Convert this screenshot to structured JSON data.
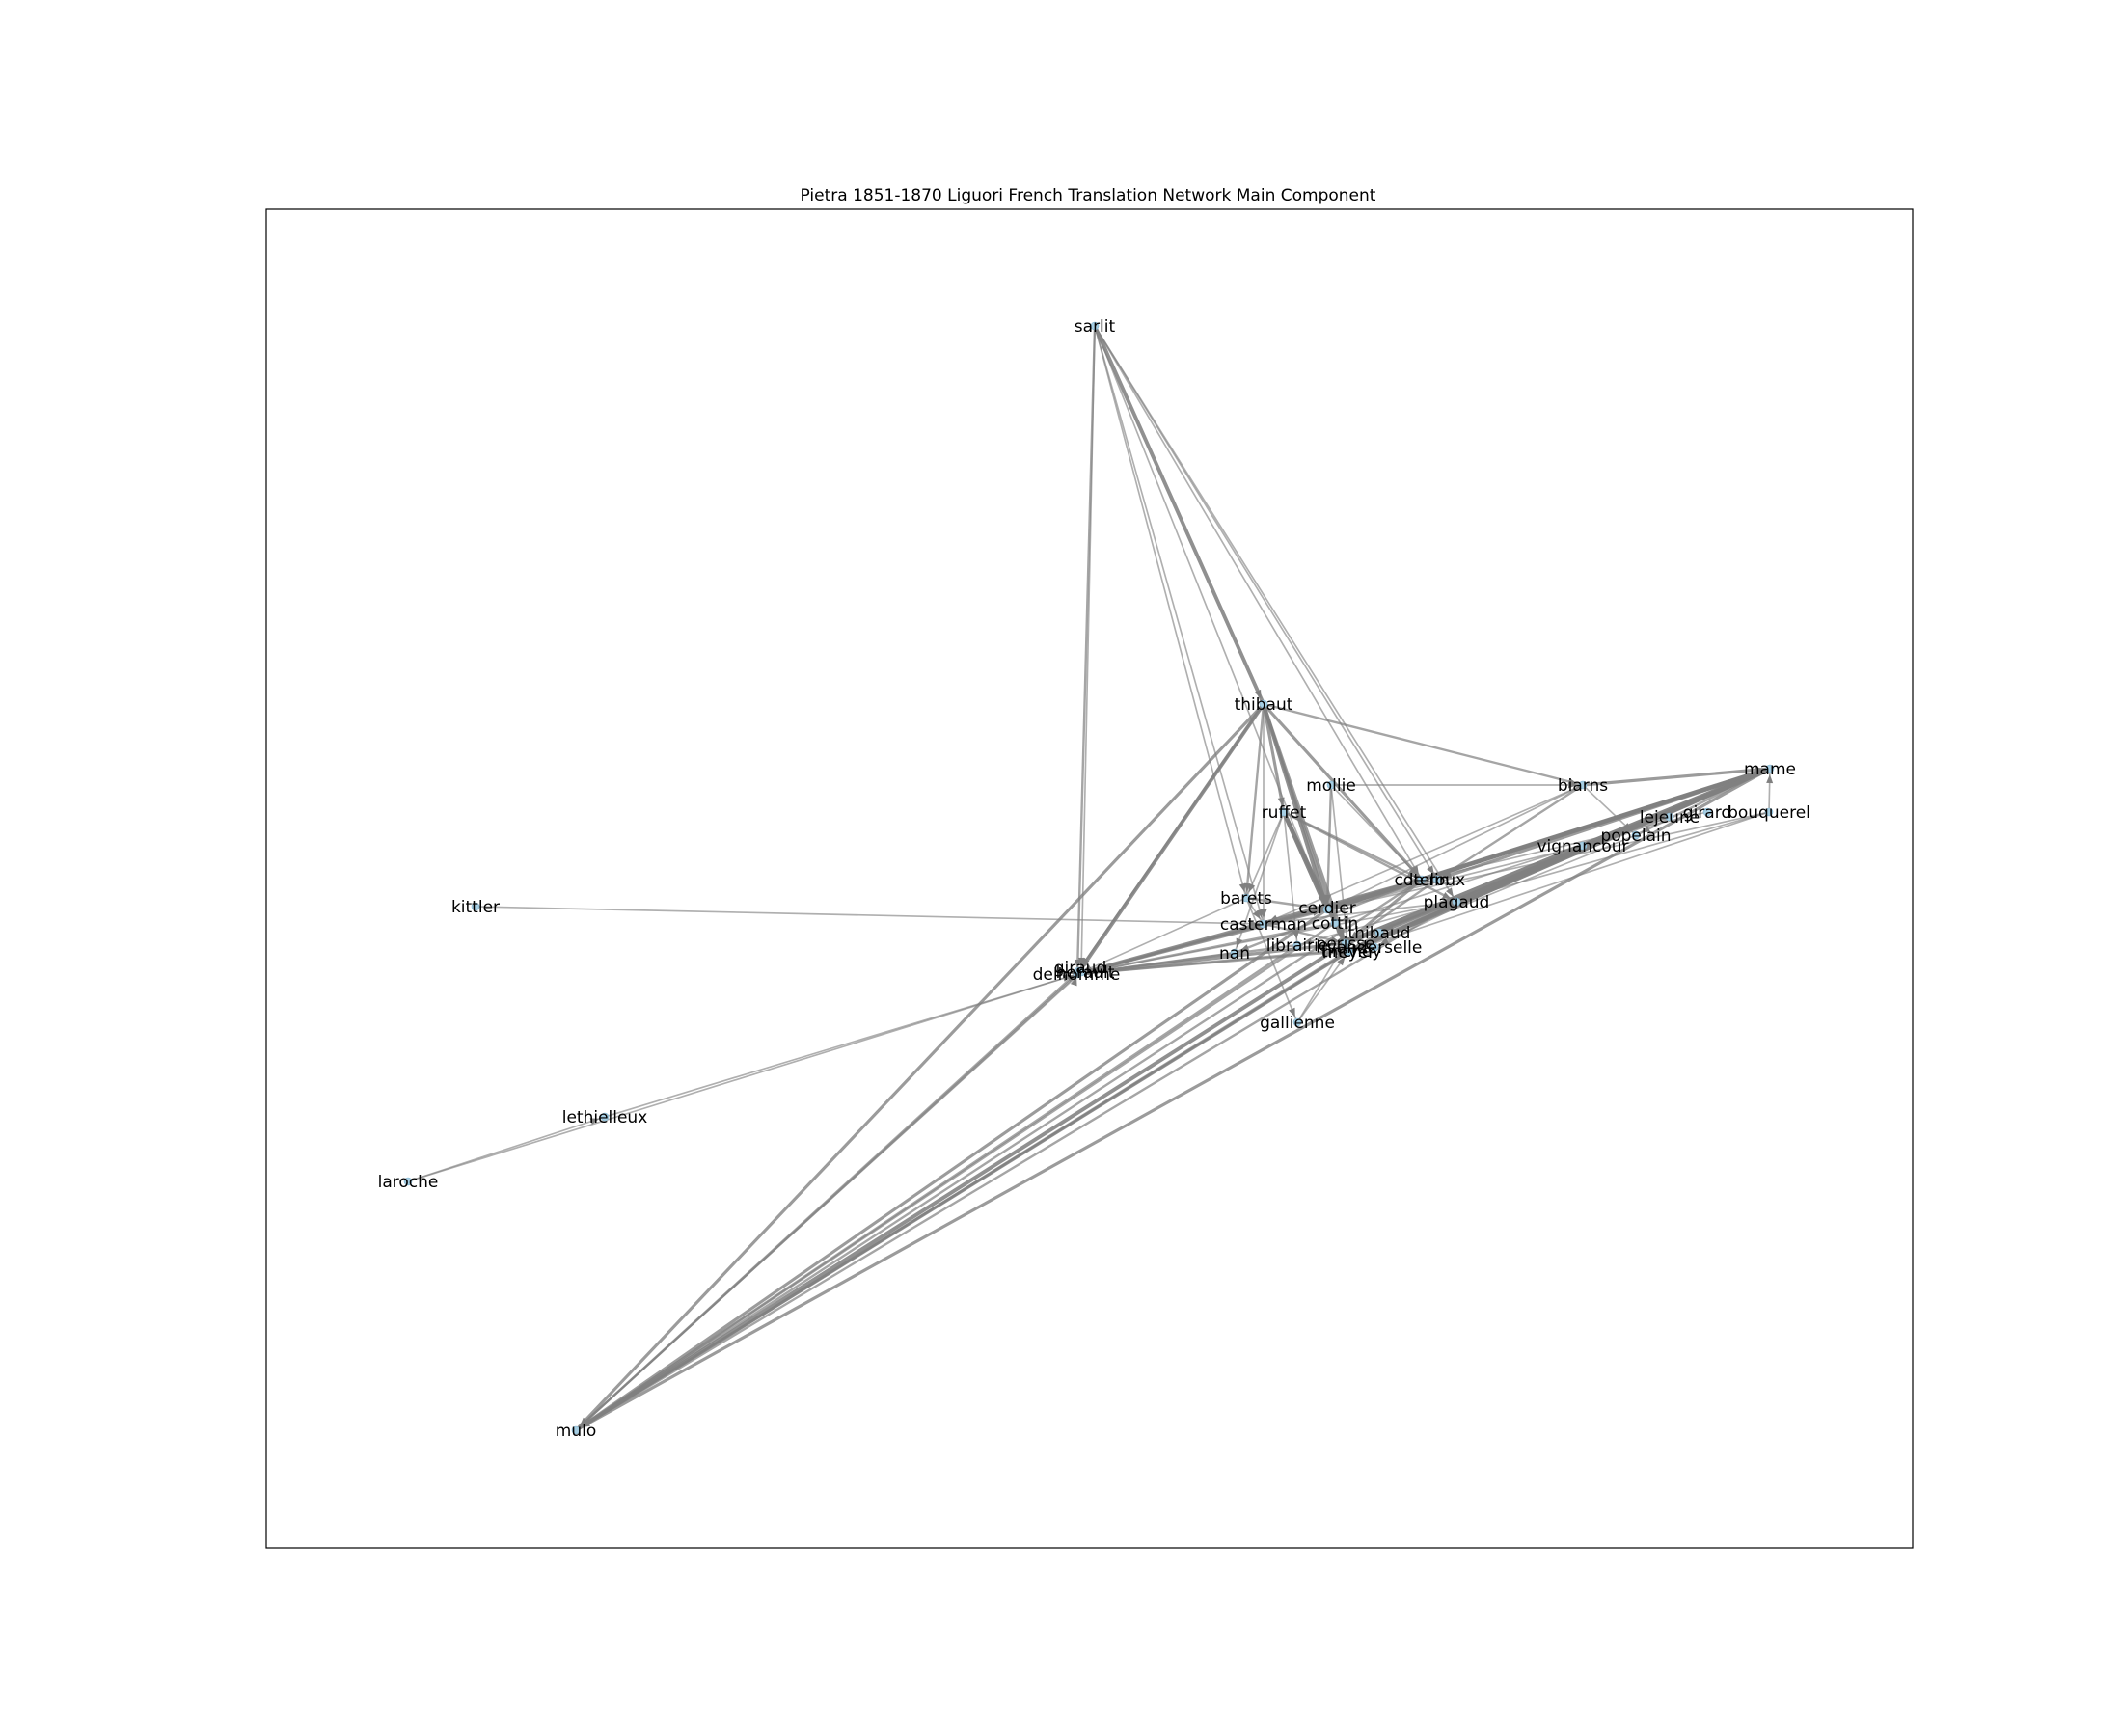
{
  "figure": {
    "title": "Pietra 1851-1870 Liguori French Translation Network Main Component"
  },
  "network": {
    "nodes": [
      {
        "id": "sarlit",
        "label": "sarlit"
      },
      {
        "id": "thibaut",
        "label": "thibaut"
      },
      {
        "id": "mollie",
        "label": "mollie"
      },
      {
        "id": "biarns",
        "label": "biarns"
      },
      {
        "id": "mame",
        "label": "mame"
      },
      {
        "id": "girard",
        "label": "girard"
      },
      {
        "id": "bouquerel",
        "label": "bouquerel"
      },
      {
        "id": "lejeune",
        "label": "lejeune"
      },
      {
        "id": "popelain",
        "label": "popelain"
      },
      {
        "id": "vignancour",
        "label": "vignancour"
      },
      {
        "id": "ruffet",
        "label": "ruffet"
      },
      {
        "id": "cotelin",
        "label": "cotelin"
      },
      {
        "id": "leroux",
        "label": "le roux"
      },
      {
        "id": "plagaud",
        "label": "plagaud"
      },
      {
        "id": "barets",
        "label": "barets"
      },
      {
        "id": "casterman",
        "label": "casterman"
      },
      {
        "id": "cerdier",
        "label": "cerdier"
      },
      {
        "id": "cottin",
        "label": "cottin"
      },
      {
        "id": "thibaud",
        "label": "thibaud"
      },
      {
        "id": "librairie",
        "label": "librairie"
      },
      {
        "id": "perisse",
        "label": "perisse"
      },
      {
        "id": "vanderselle",
        "label": "vanderselle"
      },
      {
        "id": "meyer",
        "label": "meyer"
      },
      {
        "id": "tinchey",
        "label": "tinchey"
      },
      {
        "id": "nan",
        "label": "nan"
      },
      {
        "id": "delhomme",
        "label": "delhomme"
      },
      {
        "id": "giraud",
        "label": "giraud"
      },
      {
        "id": "herault",
        "label": "herault"
      },
      {
        "id": "kittler",
        "label": "kittler"
      },
      {
        "id": "gallienne",
        "label": "gallienne"
      },
      {
        "id": "lethielleux",
        "label": "lethielleux"
      },
      {
        "id": "laroche",
        "label": "laroche"
      },
      {
        "id": "mulo",
        "label": "mulo"
      }
    ],
    "edges": [
      [
        "sarlit",
        "thibaut",
        4
      ],
      [
        "sarlit",
        "delhomme",
        2
      ],
      [
        "sarlit",
        "herault",
        1
      ],
      [
        "sarlit",
        "cotelin",
        1
      ],
      [
        "sarlit",
        "leroux",
        1
      ],
      [
        "sarlit",
        "plagaud",
        1
      ],
      [
        "sarlit",
        "barets",
        1
      ],
      [
        "sarlit",
        "casterman",
        1
      ],
      [
        "sarlit",
        "cerdier",
        1
      ],
      [
        "thibaut",
        "ruffet",
        3
      ],
      [
        "thibaut",
        "cerdier",
        4
      ],
      [
        "thibaut",
        "cottin",
        3
      ],
      [
        "thibaut",
        "perisse",
        3
      ],
      [
        "thibaut",
        "delhomme",
        4
      ],
      [
        "thibaut",
        "giraud",
        2
      ],
      [
        "thibaut",
        "barets",
        2
      ],
      [
        "thibaut",
        "biarns",
        2
      ],
      [
        "thibaut",
        "cotelin",
        3
      ],
      [
        "thibaut",
        "casterman",
        1
      ],
      [
        "thibaut",
        "mulo",
        3
      ],
      [
        "mollie",
        "biarns",
        1
      ],
      [
        "mollie",
        "cotelin",
        1
      ],
      [
        "mollie",
        "cerdier",
        2
      ],
      [
        "mollie",
        "meyer",
        1
      ],
      [
        "biarns",
        "mame",
        3
      ],
      [
        "biarns",
        "leroux",
        2
      ],
      [
        "biarns",
        "cerdier",
        1
      ],
      [
        "biarns",
        "popelain",
        1
      ],
      [
        "biarns",
        "casterman",
        1
      ],
      [
        "mame",
        "cotelin",
        4
      ],
      [
        "mame",
        "leroux",
        3
      ],
      [
        "mame",
        "cerdier",
        5
      ],
      [
        "mame",
        "thibaud",
        4
      ],
      [
        "mame",
        "meyer",
        5
      ],
      [
        "mame",
        "perisse",
        6
      ],
      [
        "mame",
        "plagaud",
        3
      ],
      [
        "mame",
        "tinchey",
        4
      ],
      [
        "mame",
        "mulo",
        3
      ],
      [
        "mame",
        "popelain",
        2
      ],
      [
        "bouquerel",
        "mame",
        1
      ],
      [
        "bouquerel",
        "cerdier",
        1
      ],
      [
        "bouquerel",
        "librairie",
        1
      ],
      [
        "bouquerel",
        "meyer",
        1
      ],
      [
        "girard",
        "cotelin",
        1
      ],
      [
        "lejeune",
        "perisse",
        1
      ],
      [
        "lejeune",
        "cottin",
        1
      ],
      [
        "popelain",
        "meyer",
        1
      ],
      [
        "vignancour",
        "cerdier",
        1
      ],
      [
        "vignancour",
        "vanderselle",
        1
      ],
      [
        "ruffet",
        "cerdier",
        5
      ],
      [
        "ruffet",
        "perisse",
        4
      ],
      [
        "ruffet",
        "meyer",
        3
      ],
      [
        "ruffet",
        "cotelin",
        2
      ],
      [
        "ruffet",
        "tinchey",
        3
      ],
      [
        "ruffet",
        "plagaud",
        2
      ],
      [
        "ruffet",
        "librairie",
        1
      ],
      [
        "ruffet",
        "barets",
        1
      ],
      [
        "ruffet",
        "nan",
        1
      ],
      [
        "cotelin",
        "cerdier",
        4
      ],
      [
        "cotelin",
        "delhomme",
        4
      ],
      [
        "cotelin",
        "perisse",
        3
      ],
      [
        "cotelin",
        "casterman",
        2
      ],
      [
        "cotelin",
        "nan",
        2
      ],
      [
        "cotelin",
        "mulo",
        2
      ],
      [
        "leroux",
        "delhomme",
        2
      ],
      [
        "leroux",
        "perisse",
        2
      ],
      [
        "plagaud",
        "perisse",
        2
      ],
      [
        "plagaud",
        "delhomme",
        1
      ],
      [
        "plagaud",
        "casterman",
        1
      ],
      [
        "plagaud",
        "mulo",
        2
      ],
      [
        "barets",
        "cerdier",
        2
      ],
      [
        "barets",
        "delhomme",
        1
      ],
      [
        "barets",
        "gallienne",
        1
      ],
      [
        "barets",
        "casterman",
        1
      ],
      [
        "casterman",
        "delhomme",
        2
      ],
      [
        "casterman",
        "cerdier",
        2
      ],
      [
        "casterman",
        "perisse",
        2
      ],
      [
        "cerdier",
        "delhomme",
        3
      ],
      [
        "cerdier",
        "mulo",
        3
      ],
      [
        "cottin",
        "delhomme",
        2
      ],
      [
        "cottin",
        "mulo",
        2
      ],
      [
        "thibaud",
        "mulo",
        2
      ],
      [
        "meyer",
        "mulo",
        3
      ],
      [
        "perisse",
        "mulo",
        4
      ],
      [
        "perisse",
        "delhomme",
        3
      ],
      [
        "vanderselle",
        "delhomme",
        2
      ],
      [
        "tinchey",
        "delhomme",
        2
      ],
      [
        "tinchey",
        "mulo",
        2
      ],
      [
        "librairie",
        "delhomme",
        2
      ],
      [
        "nan",
        "delhomme",
        2
      ],
      [
        "librairie",
        "mulo",
        2
      ],
      [
        "delhomme",
        "giraud",
        2
      ],
      [
        "delhomme",
        "herault",
        1
      ],
      [
        "giraud",
        "mulo",
        2
      ],
      [
        "herault",
        "mulo",
        1
      ],
      [
        "delhomme",
        "mulo",
        2
      ],
      [
        "kittler",
        "casterman",
        1
      ],
      [
        "gallienne",
        "perisse",
        1
      ],
      [
        "gallienne",
        "meyer",
        1
      ],
      [
        "lethielleux",
        "delhomme",
        1
      ],
      [
        "laroche",
        "lethielleux",
        1
      ],
      [
        "laroche",
        "delhomme",
        1
      ]
    ]
  }
}
